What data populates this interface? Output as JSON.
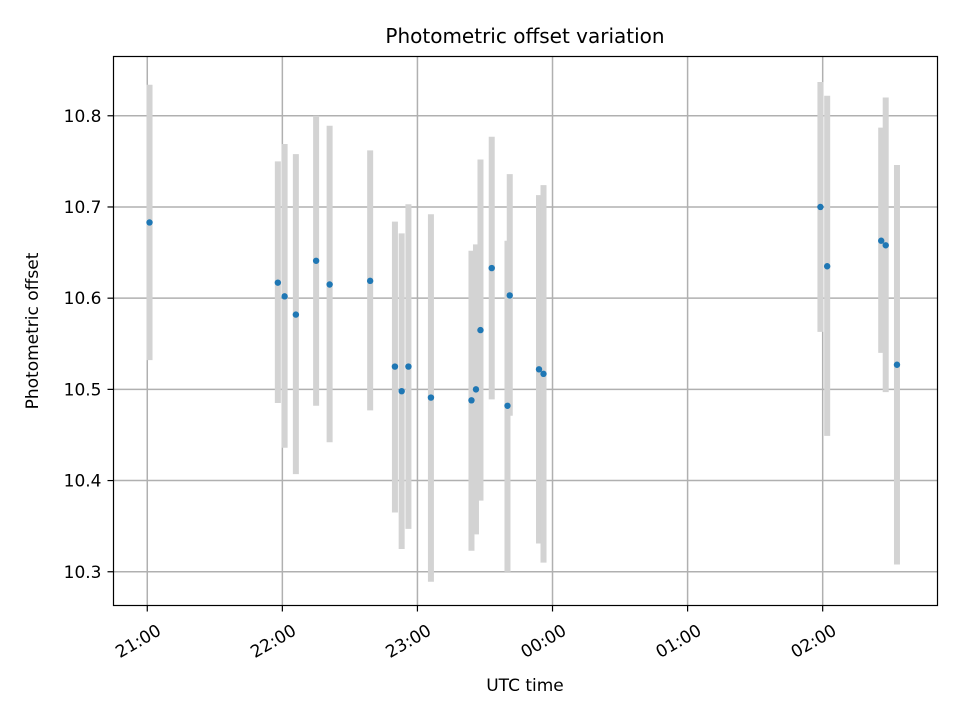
{
  "chart_data": {
    "type": "scatter",
    "title": "Photometric offset variation",
    "xlabel": "UTC time",
    "ylabel": "Photometric offset",
    "x_unit": "UTC time (HH:MM)",
    "xlim": [
      "20:45",
      "02:51"
    ],
    "ylim": [
      10.263,
      10.865
    ],
    "x_ticks": [
      "21:00",
      "22:00",
      "23:00",
      "00:00",
      "01:00",
      "02:00"
    ],
    "y_ticks": [
      10.3,
      10.4,
      10.5,
      10.6,
      10.7,
      10.8
    ],
    "y_tick_labels": [
      "10.3",
      "10.4",
      "10.5",
      "10.6",
      "10.7",
      "10.8"
    ],
    "grid": true,
    "legend": "none",
    "colors": {
      "point": "#1f77b4",
      "errorbar": "#d3d3d3",
      "grid": "#b0b0b0"
    },
    "series": [
      {
        "marker": "point-with-errorbar",
        "points": [
          {
            "x": "21:01",
            "y": 10.683,
            "ylow": 10.532,
            "yhigh": 10.834
          },
          {
            "x": "21:58",
            "y": 10.617,
            "ylow": 10.485,
            "yhigh": 10.75
          },
          {
            "x": "22:01",
            "y": 10.602,
            "ylow": 10.436,
            "yhigh": 10.769
          },
          {
            "x": "22:06",
            "y": 10.582,
            "ylow": 10.407,
            "yhigh": 10.758
          },
          {
            "x": "22:15",
            "y": 10.641,
            "ylow": 10.482,
            "yhigh": 10.8
          },
          {
            "x": "22:21",
            "y": 10.615,
            "ylow": 10.442,
            "yhigh": 10.789
          },
          {
            "x": "22:39",
            "y": 10.619,
            "ylow": 10.477,
            "yhigh": 10.762
          },
          {
            "x": "22:50",
            "y": 10.525,
            "ylow": 10.365,
            "yhigh": 10.684
          },
          {
            "x": "22:53",
            "y": 10.498,
            "ylow": 10.325,
            "yhigh": 10.671
          },
          {
            "x": "22:56",
            "y": 10.525,
            "ylow": 10.347,
            "yhigh": 10.703
          },
          {
            "x": "23:06",
            "y": 10.491,
            "ylow": 10.289,
            "yhigh": 10.692
          },
          {
            "x": "23:24",
            "y": 10.488,
            "ylow": 10.323,
            "yhigh": 10.652
          },
          {
            "x": "23:26",
            "y": 10.5,
            "ylow": 10.341,
            "yhigh": 10.659
          },
          {
            "x": "23:28",
            "y": 10.565,
            "ylow": 10.378,
            "yhigh": 10.752
          },
          {
            "x": "23:33",
            "y": 10.633,
            "ylow": 10.489,
            "yhigh": 10.777
          },
          {
            "x": "23:40",
            "y": 10.482,
            "ylow": 10.3,
            "yhigh": 10.663
          },
          {
            "x": "23:41",
            "y": 10.603,
            "ylow": 10.471,
            "yhigh": 10.736
          },
          {
            "x": "23:54",
            "y": 10.522,
            "ylow": 10.331,
            "yhigh": 10.713
          },
          {
            "x": "23:56",
            "y": 10.517,
            "ylow": 10.31,
            "yhigh": 10.724
          },
          {
            "x": "01:59",
            "y": 10.7,
            "ylow": 10.563,
            "yhigh": 10.837
          },
          {
            "x": "02:02",
            "y": 10.635,
            "ylow": 10.449,
            "yhigh": 10.822
          },
          {
            "x": "02:26",
            "y": 10.663,
            "ylow": 10.54,
            "yhigh": 10.787
          },
          {
            "x": "02:28",
            "y": 10.658,
            "ylow": 10.497,
            "yhigh": 10.82
          },
          {
            "x": "02:33",
            "y": 10.527,
            "ylow": 10.308,
            "yhigh": 10.746
          }
        ]
      }
    ]
  }
}
